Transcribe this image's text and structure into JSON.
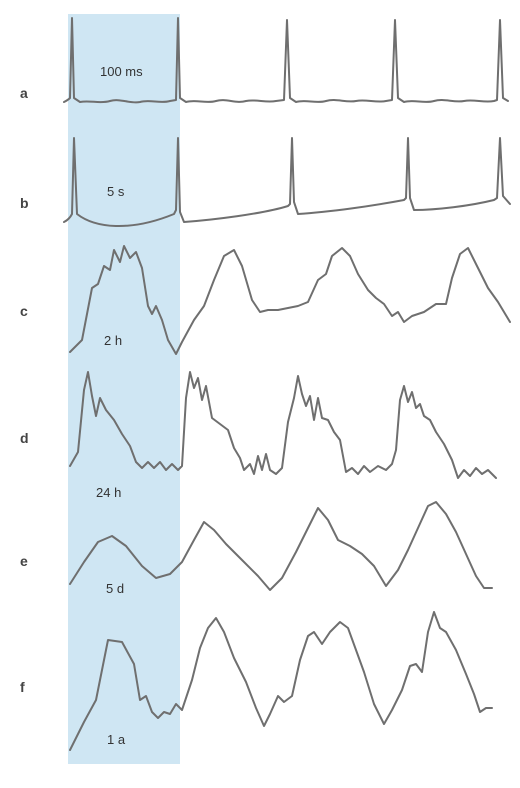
{
  "rows": [
    {
      "label": "a",
      "period": "100 ms"
    },
    {
      "label": "b",
      "period": "5 s"
    },
    {
      "label": "c",
      "period": "2 h"
    },
    {
      "label": "d",
      "period": "24 h"
    },
    {
      "label": "e",
      "period": "5 d"
    },
    {
      "label": "f",
      "period": "1 a"
    }
  ],
  "colors": {
    "highlight_band": "#cfe6f3",
    "trace": "#6f6f6f",
    "label": "#444444"
  }
}
